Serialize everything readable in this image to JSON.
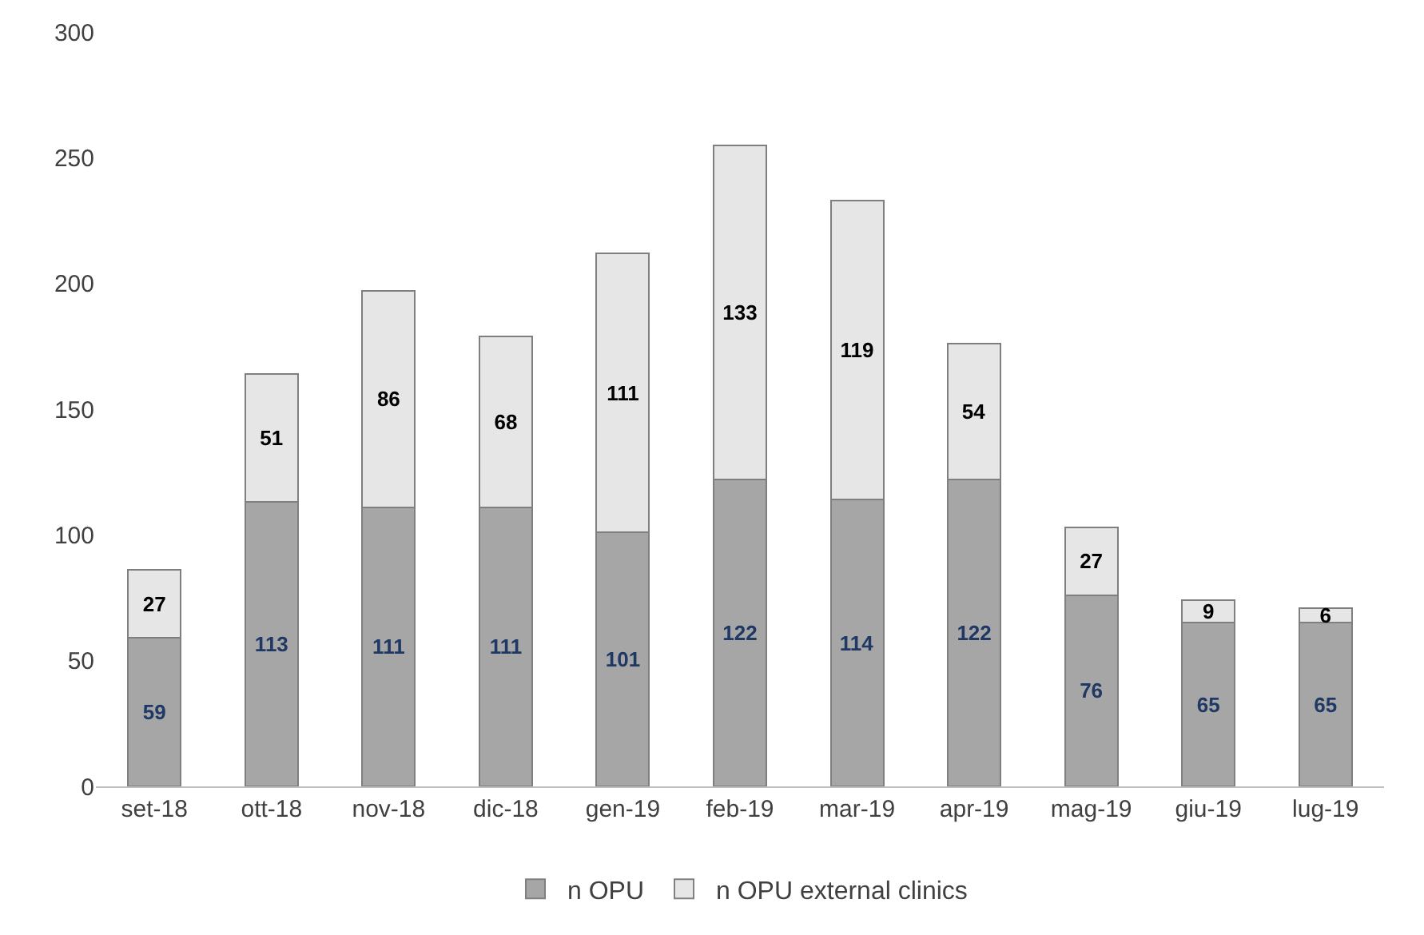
{
  "chart_data": {
    "type": "bar",
    "stacked": true,
    "data_labels": true,
    "legend": "bottom",
    "grid": false,
    "categories": [
      "set-18",
      "ott-18",
      "nov-18",
      "dic-18",
      "gen-19",
      "feb-19",
      "mar-19",
      "apr-19",
      "mag-19",
      "giu-19",
      "lug-19"
    ],
    "series": [
      {
        "name": "n OPU",
        "color": "#a6a6a6",
        "values": [
          59,
          113,
          111,
          111,
          101,
          122,
          114,
          122,
          76,
          65,
          65
        ]
      },
      {
        "name": "n OPU external clinics",
        "color": "#e7e6e6",
        "values": [
          27,
          51,
          86,
          68,
          111,
          133,
          119,
          54,
          27,
          9,
          6
        ]
      }
    ],
    "ylim": [
      0,
      300
    ],
    "yticks": [
      0,
      50,
      100,
      150,
      200,
      250,
      300
    ]
  }
}
